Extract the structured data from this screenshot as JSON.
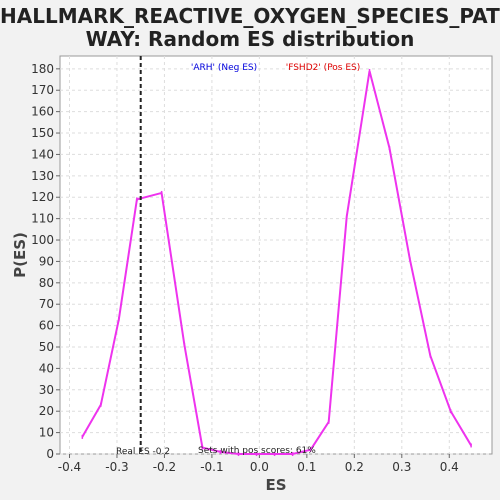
{
  "title_line1": "HALLMARK_REACTIVE_OXYGEN_SPECIES_PATH",
  "title_line2": "WAY: Random ES distribution",
  "legend": {
    "neg_label": "'ARH' (Neg ES)",
    "pos_label": "'FSHD2' (Pos ES)",
    "neg_color": "#0000dd",
    "pos_color": "#dd0000"
  },
  "annotations": {
    "real_es": "Real ES -0.2",
    "pos_scores": "Sets with pos scores: 61%"
  },
  "chart_data": {
    "type": "line",
    "xlabel": "ES",
    "ylabel": "P(ES)",
    "xlim": [
      -0.42,
      0.49
    ],
    "ylim": [
      0,
      186
    ],
    "xticks": [
      -0.4,
      -0.3,
      -0.2,
      -0.1,
      0.0,
      0.1,
      0.2,
      0.3,
      0.4
    ],
    "xtick_labels": [
      "-0.4",
      "-0.3",
      "-0.2",
      "-0.1",
      "0.0",
      "0.1",
      "0.2",
      "0.3",
      "0.4"
    ],
    "yticks": [
      0,
      10,
      20,
      30,
      40,
      50,
      60,
      70,
      80,
      90,
      100,
      110,
      120,
      130,
      140,
      150,
      160,
      170,
      180
    ],
    "ytick_labels": [
      "0",
      "10",
      "20",
      "30",
      "40",
      "50",
      "60",
      "70",
      "80",
      "90",
      "100",
      "110",
      "120",
      "130",
      "140",
      "150",
      "160",
      "170",
      "180"
    ],
    "grid": true,
    "series": [
      {
        "color": "#ee33ee",
        "x": [
          -0.373,
          -0.334,
          -0.296,
          -0.258,
          -0.206,
          -0.158,
          -0.12,
          -0.082,
          -0.044,
          -0.006,
          0.032,
          0.07,
          0.108,
          0.146,
          0.184,
          0.232,
          0.274,
          0.317,
          0.36,
          0.403,
          0.446
        ],
        "y": [
          8,
          23,
          63,
          119,
          122,
          51,
          3,
          1,
          0,
          0,
          0,
          0,
          2,
          15,
          111,
          179,
          143,
          91,
          46,
          20,
          4
        ]
      }
    ],
    "real_es_line_x": -0.25
  }
}
